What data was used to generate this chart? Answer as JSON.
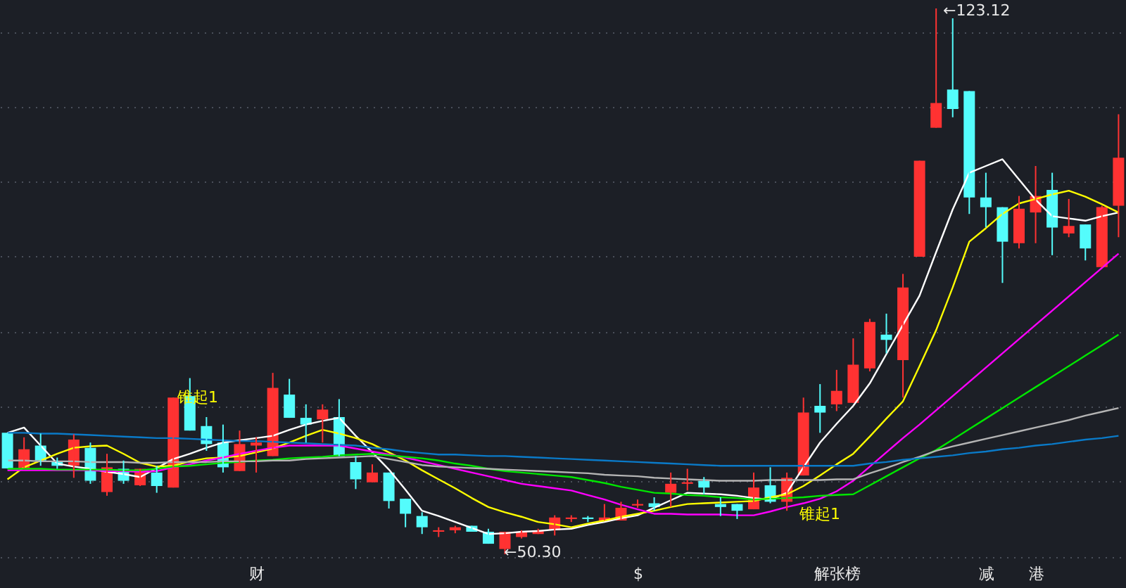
{
  "chart_data": {
    "type": "candlestick",
    "categories": [
      null,
      null,
      null,
      null,
      null,
      null,
      null,
      null,
      null,
      null,
      null,
      null,
      null,
      null,
      null,
      "财",
      null,
      null,
      null,
      null,
      null,
      null,
      null,
      null,
      null,
      null,
      null,
      null,
      null,
      null,
      null,
      null,
      null,
      null,
      null,
      null,
      null,
      null,
      "$",
      null,
      null,
      null,
      null,
      null,
      null,
      null,
      null,
      null,
      null,
      null,
      "解张榜",
      null,
      null,
      null,
      null,
      null,
      null,
      null,
      null,
      "减",
      null,
      null,
      "港",
      null,
      null,
      null,
      null,
      null
    ],
    "yticks": [
      {
        "value": 50,
        "label": null
      },
      {
        "value": 60,
        "label": null
      },
      {
        "value": 70,
        "label": null
      },
      {
        "value": 80,
        "label": null
      },
      {
        "value": 90,
        "label": null
      },
      {
        "value": 100,
        "label": null
      },
      {
        "value": 110,
        "label": null
      },
      {
        "value": 120,
        "label": null
      }
    ],
    "grid": "y",
    "tick_labels": "x",
    "colors": [
      "#54fcfc",
      "#ff3232",
      "#54fcfc",
      "#54fcfc",
      "#ff3232",
      "#54fcfc",
      "#ff3232",
      "#54fcfc",
      "#ff3232",
      "#54fcfc",
      "#ff3232",
      "#54fcfc",
      "#54fcfc",
      "#54fcfc",
      "#ff3232",
      "#ff3232",
      "#ff3232",
      "#54fcfc",
      "#54fcfc",
      "#ff3232",
      "#54fcfc",
      "#54fcfc",
      "#ff3232",
      "#54fcfc",
      "#54fcfc",
      "#54fcfc",
      "#ff3232",
      "#ff3232",
      "#54fcfc",
      "#54fcfc",
      "#ff3232",
      "#ff3232",
      "#ff3232",
      "#ff3232",
      "#ff3232",
      "#54fcfc",
      "#ff3232",
      "#ff3232",
      "#ff3232",
      "#54fcfc",
      "#ff3232",
      "#ff3232",
      "#54fcfc",
      "#54fcfc",
      "#54fcfc",
      "#ff3232",
      "#54fcfc",
      "#ff3232",
      "#ff3232",
      "#54fcfc",
      "#ff3232",
      "#ff3232",
      "#ff3232",
      "#54fcfc",
      "#ff3232",
      "#ff3232",
      "#ff3232",
      "#54fcfc",
      "#54fcfc",
      "#54fcfc",
      "#54fcfc",
      "#ff3232",
      "#ff3232",
      "#54fcfc",
      "#ff3232",
      "#54fcfc",
      "#ff3232",
      "#ff3232"
    ],
    "ohlc": [
      [
        66.5,
        66.5,
        61.75,
        61.75
      ],
      [
        61.75,
        65.9,
        61.75,
        64.3
      ],
      [
        64.8,
        66.4,
        62.1,
        62.8
      ],
      [
        62.6,
        63.2,
        61.7,
        62.1
      ],
      [
        62.1,
        66.3,
        60.5,
        65.6
      ],
      [
        64.5,
        65.2,
        59.7,
        60.1
      ],
      [
        58.6,
        63.7,
        58.1,
        61.9
      ],
      [
        61.7,
        62.8,
        59.7,
        60.1
      ],
      [
        59.5,
        61.7,
        59.4,
        61.7
      ],
      [
        61.2,
        62.1,
        58.5,
        59.4
      ],
      [
        59.2,
        71.2,
        59.2,
        71.2
      ],
      [
        71.4,
        73.8,
        66.8,
        66.8
      ],
      [
        67.4,
        68.6,
        64.1,
        65.0
      ],
      [
        65.2,
        67.6,
        61.2,
        61.9
      ],
      [
        61.4,
        66.8,
        61.4,
        65.0
      ],
      [
        64.8,
        65.9,
        61.2,
        65.2
      ],
      [
        63.4,
        74.5,
        63.4,
        72.5
      ],
      [
        71.6,
        73.7,
        68.5,
        68.5
      ],
      [
        68.5,
        70.3,
        65.2,
        67.6
      ],
      [
        68.3,
        70.3,
        65.2,
        69.6
      ],
      [
        68.6,
        71.0,
        63.4,
        63.4
      ],
      [
        62.6,
        63.4,
        59.0,
        60.3
      ],
      [
        59.9,
        62.3,
        59.9,
        61.2
      ],
      [
        61.2,
        61.2,
        56.4,
        57.4
      ],
      [
        57.7,
        57.7,
        53.9,
        55.7
      ],
      [
        55.4,
        55.9,
        53.0,
        53.9
      ],
      [
        53.3,
        53.9,
        52.6,
        53.5
      ],
      [
        53.5,
        54.1,
        53.1,
        53.9
      ],
      [
        54.1,
        54.1,
        53.3,
        53.3
      ],
      [
        53.3,
        53.7,
        51.7,
        51.7
      ],
      [
        51.0,
        53.3,
        50.3,
        53.3
      ],
      [
        52.6,
        53.5,
        52.4,
        53.3
      ],
      [
        53.0,
        53.7,
        53.0,
        53.5
      ],
      [
        53.5,
        55.5,
        52.8,
        55.2
      ],
      [
        55.0,
        55.5,
        54.6,
        55.2
      ],
      [
        55.2,
        55.4,
        54.6,
        55.0
      ],
      [
        54.8,
        57.0,
        54.8,
        55.2
      ],
      [
        54.8,
        57.3,
        54.8,
        56.5
      ],
      [
        56.8,
        57.6,
        56.5,
        57.0
      ],
      [
        57.1,
        57.9,
        56.1,
        56.6
      ],
      [
        58.5,
        61.2,
        56.6,
        59.7
      ],
      [
        59.7,
        61.7,
        58.8,
        59.9
      ],
      [
        60.1,
        60.6,
        58.3,
        59.2
      ],
      [
        57.0,
        57.9,
        55.4,
        56.6
      ],
      [
        57.0,
        57.0,
        55.0,
        56.1
      ],
      [
        56.3,
        61.2,
        56.3,
        59.2
      ],
      [
        59.5,
        61.9,
        57.1,
        57.3
      ],
      [
        57.3,
        61.2,
        56.1,
        60.5
      ],
      [
        60.8,
        71.2,
        60.8,
        69.2
      ],
      [
        70.1,
        73.0,
        66.5,
        69.2
      ],
      [
        70.3,
        74.9,
        69.4,
        72.1
      ],
      [
        70.5,
        79.1,
        70.5,
        75.6
      ],
      [
        75.1,
        81.7,
        74.7,
        81.3
      ],
      [
        79.6,
        82.4,
        77.1,
        78.9
      ],
      [
        76.2,
        87.7,
        71.2,
        85.9
      ],
      [
        90.0,
        102.8,
        90.0,
        102.8
      ],
      [
        107.2,
        123.12,
        107.2,
        110.5
      ],
      [
        112.3,
        121.8,
        108.6,
        109.7
      ],
      [
        112.1,
        112.1,
        95.7,
        97.9
      ],
      [
        97.9,
        101.2,
        93.9,
        96.6
      ],
      [
        96.6,
        96.6,
        86.5,
        92.0
      ],
      [
        91.8,
        98.1,
        91.1,
        96.4
      ],
      [
        95.9,
        102.1,
        91.8,
        98.1
      ],
      [
        98.9,
        101.2,
        90.2,
        93.9
      ],
      [
        93.1,
        97.7,
        92.6,
        94.1
      ],
      [
        94.3,
        94.3,
        89.5,
        91.1
      ],
      [
        88.6,
        96.8,
        88.6,
        96.6
      ],
      [
        96.8,
        109.0,
        92.6,
        103.2
      ]
    ],
    "series": [
      {
        "type": "line",
        "color": "#ffffff",
        "values": [
          66.5,
          67.2,
          64.8,
          62.4,
          62.0,
          61.7,
          61.3,
          61.0,
          60.6,
          61.8,
          63.0,
          63.7,
          64.5,
          65.2,
          65.5,
          65.8,
          66.1,
          66.9,
          67.6,
          68.1,
          68.5,
          66.1,
          63.9,
          61.6,
          58.9,
          56.1,
          55.4,
          54.6,
          53.8,
          53.0,
          53.1,
          53.3,
          53.4,
          53.6,
          53.7,
          54.2,
          54.6,
          55.1,
          55.5,
          56.5,
          57.5,
          58.5,
          58.4,
          58.3,
          58.1,
          57.8,
          57.6,
          58.5,
          61.9,
          65.2,
          67.7,
          70.1,
          73.1,
          77.0,
          80.9,
          84.8,
          90.6,
          96.3,
          101.2,
          102.1,
          103.0,
          100.3,
          97.6,
          95.4,
          95.1,
          94.8,
          95.4,
          95.9
        ]
      },
      {
        "type": "line",
        "color": "#ffff00",
        "values": [
          60.3,
          61.9,
          62.8,
          63.7,
          64.5,
          64.7,
          64.8,
          63.7,
          62.5,
          62.0,
          62.1,
          62.7,
          63.1,
          63.2,
          63.4,
          63.9,
          64.4,
          65.2,
          66.1,
          66.9,
          66.4,
          65.8,
          65.0,
          63.9,
          62.8,
          61.5,
          60.3,
          59.1,
          57.8,
          56.6,
          55.9,
          55.3,
          54.6,
          54.3,
          53.9,
          54.4,
          54.8,
          55.3,
          55.7,
          56.1,
          56.6,
          57.0,
          57.1,
          57.2,
          57.3,
          57.4,
          57.9,
          58.3,
          59.4,
          60.8,
          62.3,
          63.7,
          66.0,
          68.4,
          70.7,
          75.4,
          80.2,
          85.9,
          92.0,
          93.8,
          95.7,
          97.1,
          97.7,
          98.3,
          98.8,
          98.0,
          97.0,
          95.9
        ]
      },
      {
        "type": "line",
        "color": "#ff00ff",
        "values": [
          61.5,
          61.5,
          61.5,
          61.5,
          61.5,
          61.5,
          61.4,
          61.4,
          61.3,
          61.4,
          61.9,
          62.3,
          62.8,
          63.2,
          63.7,
          64.1,
          64.5,
          64.8,
          64.8,
          64.8,
          64.8,
          64.4,
          64.0,
          63.6,
          63.2,
          62.7,
          62.2,
          61.7,
          61.2,
          60.7,
          60.2,
          59.7,
          59.4,
          59.1,
          58.8,
          58.2,
          57.6,
          56.9,
          56.3,
          55.7,
          55.7,
          55.6,
          55.6,
          55.6,
          55.5,
          55.5,
          56.0,
          56.6,
          57.1,
          57.7,
          58.7,
          60.1,
          62.0,
          63.9,
          65.8,
          67.6,
          69.5,
          71.4,
          73.3,
          75.2,
          77.1,
          79.0,
          80.9,
          82.8,
          84.7,
          86.6,
          88.5,
          90.4
        ]
      },
      {
        "type": "line",
        "color": "#00e600",
        "values": [
          61.7,
          61.7,
          61.7,
          61.6,
          61.6,
          61.6,
          61.6,
          61.5,
          61.5,
          61.7,
          62.0,
          62.1,
          62.3,
          62.5,
          62.6,
          62.8,
          62.9,
          63.1,
          63.2,
          63.3,
          63.5,
          63.6,
          63.7,
          63.5,
          63.3,
          63.1,
          62.8,
          62.4,
          62.1,
          61.7,
          61.4,
          61.2,
          61.0,
          60.8,
          60.6,
          60.2,
          59.8,
          59.3,
          58.9,
          58.5,
          58.4,
          58.2,
          58.1,
          57.9,
          57.8,
          57.6,
          57.7,
          57.8,
          57.9,
          58.1,
          58.2,
          58.3,
          59.5,
          60.7,
          61.9,
          63.1,
          64.2,
          65.6,
          67.0,
          68.4,
          69.8,
          71.2,
          72.6,
          74.0,
          75.4,
          76.8,
          78.2,
          79.6
        ]
      },
      {
        "type": "line",
        "color": "#b4b4b4",
        "values": [
          62.8,
          62.8,
          62.7,
          62.7,
          62.7,
          62.6,
          62.6,
          62.6,
          62.5,
          62.5,
          62.6,
          62.6,
          62.6,
          62.7,
          62.7,
          62.7,
          62.8,
          62.8,
          63.0,
          63.1,
          63.2,
          63.3,
          63.4,
          63.0,
          62.6,
          62.2,
          62.0,
          61.9,
          61.8,
          61.7,
          61.6,
          61.5,
          61.4,
          61.3,
          61.2,
          61.1,
          60.9,
          60.8,
          60.7,
          60.5,
          60.4,
          60.3,
          60.2,
          60.1,
          60.1,
          60.1,
          60.2,
          60.2,
          60.2,
          60.2,
          60.3,
          60.3,
          61.1,
          61.8,
          62.6,
          63.3,
          64.1,
          64.7,
          65.2,
          65.7,
          66.2,
          66.7,
          67.2,
          67.7,
          68.2,
          68.8,
          69.3,
          69.8
        ]
      },
      {
        "type": "line",
        "color": "#0a7ac8",
        "values": [
          66.5,
          66.5,
          66.4,
          66.4,
          66.3,
          66.2,
          66.1,
          66.0,
          65.9,
          65.8,
          65.8,
          65.7,
          65.6,
          65.5,
          65.4,
          65.4,
          65.3,
          65.2,
          65.1,
          65.0,
          64.9,
          64.8,
          64.5,
          64.3,
          64.0,
          63.8,
          63.6,
          63.6,
          63.5,
          63.4,
          63.4,
          63.3,
          63.2,
          63.1,
          63.0,
          62.9,
          62.8,
          62.7,
          62.6,
          62.5,
          62.4,
          62.3,
          62.2,
          62.1,
          62.1,
          62.1,
          62.1,
          62.1,
          62.1,
          62.1,
          62.1,
          62.1,
          62.4,
          62.6,
          62.9,
          63.1,
          63.3,
          63.5,
          63.8,
          64.0,
          64.3,
          64.5,
          64.8,
          65.0,
          65.3,
          65.6,
          65.8,
          66.1
        ]
      }
    ],
    "annotations": [
      "←123.12",
      "←50.30",
      "锥起1",
      "锥起1"
    ]
  }
}
